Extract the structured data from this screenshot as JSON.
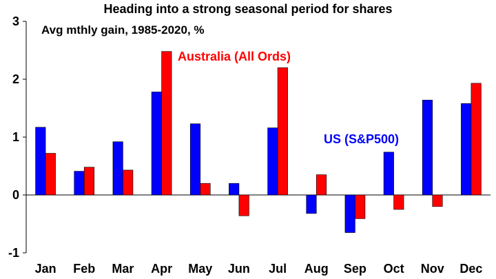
{
  "chart_data": {
    "type": "bar",
    "title": "Heading into a strong seasonal period for shares",
    "subtitle": "Avg mthly gain, 1985-2020, %",
    "xlabel": "",
    "ylabel": "",
    "ylim": [
      -1,
      3
    ],
    "yticks": [
      "-1",
      "0",
      "1",
      "2",
      "3"
    ],
    "grid": false,
    "categories": [
      "Jan",
      "Feb",
      "Mar",
      "Apr",
      "May",
      "Jun",
      "Jul",
      "Aug",
      "Sep",
      "Oct",
      "Nov",
      "Dec"
    ],
    "series": [
      {
        "name": "US (S&P500)",
        "color": "#0000ff",
        "values": [
          1.17,
          0.41,
          0.92,
          1.78,
          1.23,
          0.2,
          1.16,
          -0.32,
          -0.65,
          0.74,
          1.64,
          1.58
        ]
      },
      {
        "name": "Australia (All Ords)",
        "color": "#ff0000",
        "values": [
          0.72,
          0.48,
          0.43,
          2.48,
          0.2,
          -0.36,
          2.2,
          0.35,
          -0.41,
          -0.25,
          -0.2,
          1.93
        ]
      }
    ]
  }
}
